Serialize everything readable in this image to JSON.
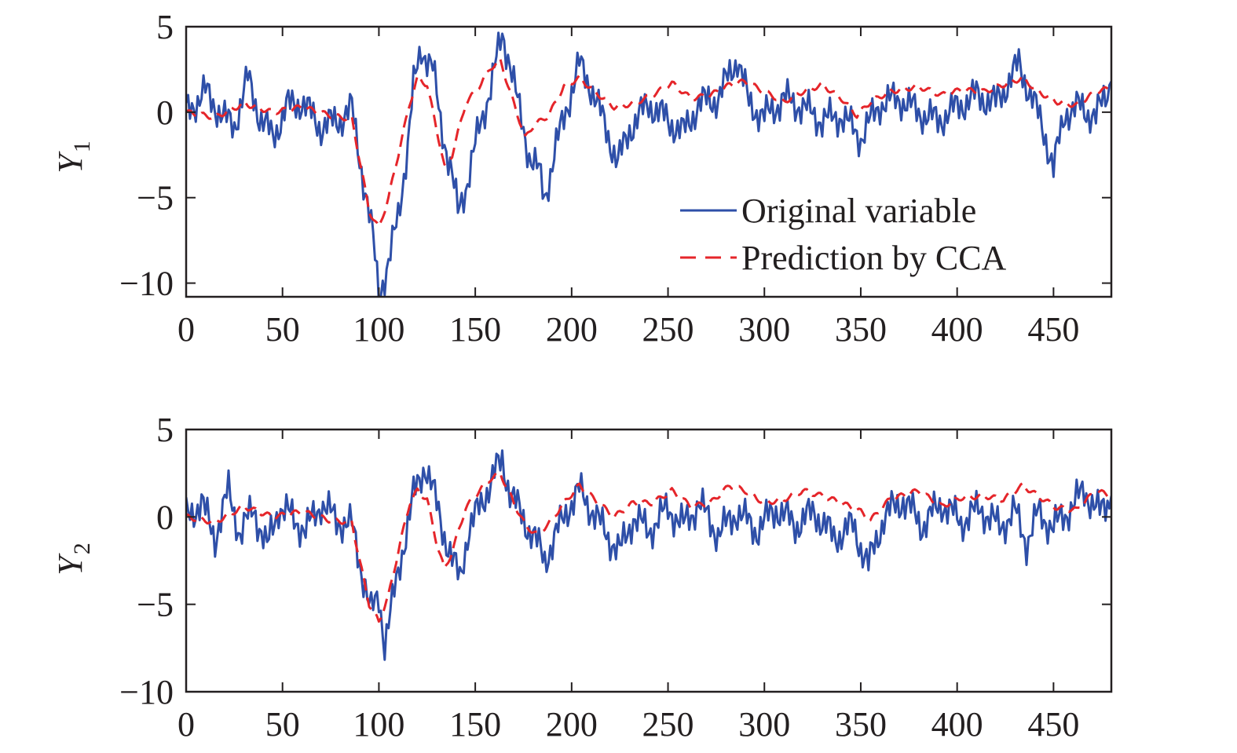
{
  "chart_data": [
    {
      "type": "line",
      "ylabel": "Y",
      "ylabel_subscript": "1",
      "xlim": [
        0,
        480
      ],
      "ylim": [
        -10.8,
        5
      ],
      "x_ticks": [
        0,
        50,
        100,
        150,
        200,
        250,
        300,
        350,
        400,
        450
      ],
      "y_ticks": [
        5,
        0,
        -5,
        -10
      ],
      "x_tick_labels": [
        "0",
        "50",
        "100",
        "150",
        "200",
        "250",
        "300",
        "350",
        "400",
        "450"
      ],
      "y_tick_labels": [
        "5",
        "0",
        "−5",
        "−10"
      ],
      "legend_position": "lower-right",
      "series": [
        {
          "name": "Original variable",
          "style": "solid",
          "color": "#2e4fa8",
          "points": [
            [
              0,
              0
            ],
            [
              10,
              1.2
            ],
            [
              20,
              -0.4
            ],
            [
              25,
              -0.8
            ],
            [
              32,
              2.0
            ],
            [
              38,
              -0.2
            ],
            [
              45,
              -1.5
            ],
            [
              52,
              0.3
            ],
            [
              60,
              0.6
            ],
            [
              70,
              -0.9
            ],
            [
              80,
              -0.4
            ],
            [
              86,
              0.2
            ],
            [
              92,
              -4.0
            ],
            [
              97,
              -7.5
            ],
            [
              100,
              -10.5
            ],
            [
              105,
              -9.0
            ],
            [
              110,
              -6.0
            ],
            [
              115,
              -2.0
            ],
            [
              118,
              1.5
            ],
            [
              122,
              3.8
            ],
            [
              128,
              2.5
            ],
            [
              132,
              -0.5
            ],
            [
              138,
              -3.8
            ],
            [
              141,
              -5.8
            ],
            [
              146,
              -4.0
            ],
            [
              152,
              -1.0
            ],
            [
              158,
              1.5
            ],
            [
              164,
              4.5
            ],
            [
              168,
              3.0
            ],
            [
              172,
              0.5
            ],
            [
              178,
              -2.5
            ],
            [
              183,
              -3.5
            ],
            [
              186,
              -5.0
            ],
            [
              192,
              -2.0
            ],
            [
              198,
              0.5
            ],
            [
              204,
              2.8
            ],
            [
              210,
              1.5
            ],
            [
              218,
              -1.0
            ],
            [
              224,
              -3.0
            ],
            [
              230,
              -1.0
            ],
            [
              240,
              0.5
            ],
            [
              250,
              -0.5
            ],
            [
              258,
              -1.2
            ],
            [
              266,
              0.5
            ],
            [
              276,
              0.8
            ],
            [
              286,
              3.2
            ],
            [
              292,
              0.5
            ],
            [
              300,
              -0.3
            ],
            [
              310,
              0.8
            ],
            [
              320,
              0.3
            ],
            [
              330,
              -0.5
            ],
            [
              340,
              -0.2
            ],
            [
              350,
              -1.5
            ],
            [
              360,
              0.5
            ],
            [
              370,
              0.8
            ],
            [
              380,
              0.0
            ],
            [
              390,
              -0.5
            ],
            [
              400,
              0.3
            ],
            [
              410,
              1.0
            ],
            [
              420,
              0.5
            ],
            [
              432,
              2.8
            ],
            [
              440,
              0.5
            ],
            [
              446,
              -1.5
            ],
            [
              450,
              -3.3
            ],
            [
              456,
              0.0
            ],
            [
              464,
              0.3
            ],
            [
              472,
              -0.3
            ],
            [
              480,
              1.8
            ]
          ]
        },
        {
          "name": "Prediction by CCA",
          "style": "dashed",
          "color": "#e5252a",
          "points": [
            [
              0,
              0
            ],
            [
              15,
              -0.3
            ],
            [
              30,
              0.5
            ],
            [
              45,
              0.0
            ],
            [
              60,
              0.3
            ],
            [
              75,
              -0.2
            ],
            [
              86,
              -0.4
            ],
            [
              90,
              -2.8
            ],
            [
              95,
              -5.8
            ],
            [
              100,
              -6.8
            ],
            [
              105,
              -5.0
            ],
            [
              110,
              -2.5
            ],
            [
              116,
              0.5
            ],
            [
              120,
              2.0
            ],
            [
              125,
              1.6
            ],
            [
              130,
              -1.0
            ],
            [
              134,
              -3.2
            ],
            [
              138,
              -2.5
            ],
            [
              145,
              0.5
            ],
            [
              152,
              1.5
            ],
            [
              158,
              2.6
            ],
            [
              163,
              3.0
            ],
            [
              170,
              0.5
            ],
            [
              176,
              -1.5
            ],
            [
              180,
              -0.8
            ],
            [
              188,
              -0.2
            ],
            [
              196,
              1.5
            ],
            [
              204,
              2.0
            ],
            [
              212,
              1.2
            ],
            [
              222,
              0.3
            ],
            [
              232,
              0.5
            ],
            [
              242,
              1.0
            ],
            [
              252,
              1.7
            ],
            [
              262,
              0.8
            ],
            [
              272,
              1.0
            ],
            [
              282,
              1.6
            ],
            [
              290,
              1.8
            ],
            [
              300,
              1.2
            ],
            [
              310,
              0.6
            ],
            [
              320,
              1.2
            ],
            [
              330,
              1.6
            ],
            [
              340,
              0.8
            ],
            [
              348,
              -0.2
            ],
            [
              355,
              0.6
            ],
            [
              365,
              1.2
            ],
            [
              380,
              1.5
            ],
            [
              392,
              1.0
            ],
            [
              402,
              1.3
            ],
            [
              414,
              1.2
            ],
            [
              424,
              1.6
            ],
            [
              434,
              2.0
            ],
            [
              442,
              1.2
            ],
            [
              452,
              0.6
            ],
            [
              462,
              0.4
            ],
            [
              472,
              1.2
            ],
            [
              480,
              1.4
            ]
          ]
        }
      ]
    },
    {
      "type": "line",
      "ylabel": "Y",
      "ylabel_subscript": "2",
      "xlim": [
        0,
        480
      ],
      "ylim": [
        -10,
        5
      ],
      "x_ticks": [
        0,
        50,
        100,
        150,
        200,
        250,
        300,
        350,
        400,
        450
      ],
      "y_ticks": [
        5,
        0,
        -5,
        -10
      ],
      "x_tick_labels": [
        "0",
        "50",
        "100",
        "150",
        "200",
        "250",
        "300",
        "350",
        "400",
        "450"
      ],
      "y_tick_labels": [
        "5",
        "0",
        "−5",
        "−10"
      ],
      "series": [
        {
          "name": "Original variable",
          "style": "solid",
          "color": "#2e4fa8",
          "points": [
            [
              0,
              0
            ],
            [
              8,
              0.8
            ],
            [
              15,
              -1.2
            ],
            [
              22,
              1.5
            ],
            [
              28,
              -1.0
            ],
            [
              35,
              0.5
            ],
            [
              42,
              -1.8
            ],
            [
              48,
              0.6
            ],
            [
              55,
              0.0
            ],
            [
              62,
              -0.8
            ],
            [
              70,
              0.8
            ],
            [
              78,
              -0.2
            ],
            [
              86,
              -0.5
            ],
            [
              92,
              -3.5
            ],
            [
              96,
              -5.5
            ],
            [
              100,
              -4.5
            ],
            [
              103,
              -7.2
            ],
            [
              107,
              -5.0
            ],
            [
              112,
              -2.0
            ],
            [
              118,
              1.2
            ],
            [
              124,
              3.0
            ],
            [
              128,
              1.5
            ],
            [
              134,
              -1.0
            ],
            [
              138,
              -2.5
            ],
            [
              142,
              -3.5
            ],
            [
              146,
              -1.0
            ],
            [
              150,
              0.0
            ],
            [
              156,
              1.5
            ],
            [
              160,
              2.5
            ],
            [
              164,
              3.2
            ],
            [
              168,
              1.5
            ],
            [
              174,
              0.0
            ],
            [
              180,
              -1.0
            ],
            [
              186,
              -2.5
            ],
            [
              192,
              -1.0
            ],
            [
              198,
              0.5
            ],
            [
              204,
              1.5
            ],
            [
              210,
              0.5
            ],
            [
              218,
              -1.0
            ],
            [
              225,
              -2.0
            ],
            [
              232,
              0.0
            ],
            [
              240,
              -0.8
            ],
            [
              250,
              0.5
            ],
            [
              258,
              -0.5
            ],
            [
              266,
              0.8
            ],
            [
              276,
              -1.0
            ],
            [
              286,
              0.3
            ],
            [
              296,
              -0.8
            ],
            [
              306,
              0.5
            ],
            [
              316,
              -0.5
            ],
            [
              326,
              0.3
            ],
            [
              336,
              -1.2
            ],
            [
              346,
              -0.5
            ],
            [
              354,
              -2.8
            ],
            [
              362,
              0.0
            ],
            [
              372,
              1.0
            ],
            [
              382,
              -0.5
            ],
            [
              392,
              0.8
            ],
            [
              402,
              -0.3
            ],
            [
              412,
              0.5
            ],
            [
              422,
              -0.6
            ],
            [
              430,
              0.3
            ],
            [
              436,
              -1.5
            ],
            [
              442,
              0.2
            ],
            [
              450,
              -0.6
            ],
            [
              458,
              0.4
            ],
            [
              466,
              1.5
            ],
            [
              474,
              0.2
            ],
            [
              480,
              1.2
            ]
          ]
        },
        {
          "name": "Prediction by CCA",
          "style": "dashed",
          "color": "#e5252a",
          "points": [
            [
              0,
              0
            ],
            [
              15,
              -0.3
            ],
            [
              30,
              0.6
            ],
            [
              45,
              0.0
            ],
            [
              60,
              0.3
            ],
            [
              75,
              -0.2
            ],
            [
              86,
              -0.3
            ],
            [
              90,
              -2.5
            ],
            [
              95,
              -5.0
            ],
            [
              100,
              -6.0
            ],
            [
              105,
              -4.5
            ],
            [
              110,
              -2.0
            ],
            [
              116,
              0.8
            ],
            [
              120,
              1.5
            ],
            [
              125,
              1.0
            ],
            [
              130,
              -1.5
            ],
            [
              134,
              -3.0
            ],
            [
              138,
              -2.0
            ],
            [
              145,
              0.5
            ],
            [
              152,
              1.5
            ],
            [
              158,
              2.2
            ],
            [
              163,
              2.5
            ],
            [
              170,
              0.8
            ],
            [
              176,
              -0.5
            ],
            [
              182,
              -1.0
            ],
            [
              188,
              -0.4
            ],
            [
              196,
              0.8
            ],
            [
              204,
              1.8
            ],
            [
              212,
              1.0
            ],
            [
              222,
              0.0
            ],
            [
              232,
              0.8
            ],
            [
              242,
              0.8
            ],
            [
              252,
              1.5
            ],
            [
              262,
              0.6
            ],
            [
              272,
              0.8
            ],
            [
              282,
              1.8
            ],
            [
              290,
              1.5
            ],
            [
              300,
              0.8
            ],
            [
              310,
              1.0
            ],
            [
              320,
              1.5
            ],
            [
              330,
              1.2
            ],
            [
              340,
              0.8
            ],
            [
              350,
              0.3
            ],
            [
              355,
              -0.2
            ],
            [
              365,
              1.0
            ],
            [
              380,
              1.5
            ],
            [
              392,
              0.6
            ],
            [
              402,
              1.1
            ],
            [
              414,
              1.2
            ],
            [
              424,
              1.0
            ],
            [
              434,
              1.8
            ],
            [
              442,
              1.2
            ],
            [
              452,
              0.5
            ],
            [
              462,
              0.4
            ],
            [
              472,
              1.5
            ],
            [
              480,
              1.2
            ]
          ]
        }
      ]
    }
  ]
}
